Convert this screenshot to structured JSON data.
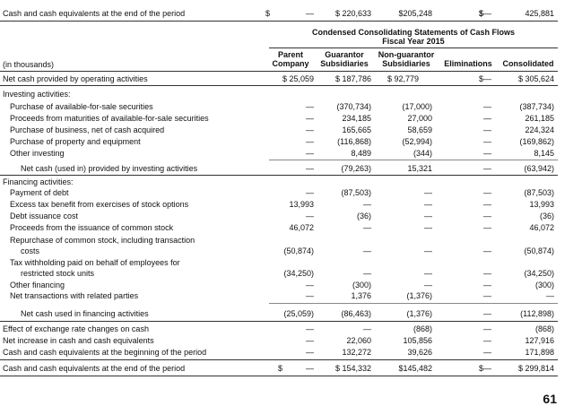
{
  "top_row": {
    "label": "Cash and cash equivalents at the end of the period",
    "parent_cur": "$",
    "parent": "—",
    "guarantor": "$ 220,633",
    "nonguarantor": "$205,248",
    "eliminations": "$—",
    "consolidated_cur": "$",
    "consolidated": "425,881"
  },
  "title_line1": "Condensed Consolidating Statements of Cash Flows",
  "title_line2": "Fiscal Year 2015",
  "col_heads": {
    "thousands": "(in thousands)",
    "parent_a": "Parent",
    "parent_b": "Company",
    "guarantor_a": "Guarantor",
    "guarantor_b": "Subsidiaries",
    "non_a": "Non-guarantor",
    "non_b": "Subsidiaries",
    "elim": "Eliminations",
    "cons": "Consolidated"
  },
  "operating": {
    "label": "Net cash provided by operating activities",
    "parent": "$ 25,059",
    "guarantor": "$ 187,786",
    "nonguarantor": "$  92,779",
    "eliminations": "$—",
    "consolidated": "$ 305,624"
  },
  "investing_head": "Investing activities:",
  "investing": [
    {
      "label": "Purchase of available-for-sale securities",
      "parent": "—",
      "guarantor": "(370,734)",
      "nonguarantor": "(17,000)",
      "eliminations": "—",
      "consolidated": "(387,734)"
    },
    {
      "label": "Proceeds from maturities of available-for-sale securities",
      "parent": "—",
      "guarantor": "234,185",
      "nonguarantor": "27,000",
      "eliminations": "—",
      "consolidated": "261,185"
    },
    {
      "label": "Purchase of business, net of cash acquired",
      "parent": "—",
      "guarantor": "165,665",
      "nonguarantor": "58,659",
      "eliminations": "—",
      "consolidated": "224,324"
    },
    {
      "label": "Purchase of property and equipment",
      "parent": "—",
      "guarantor": "(116,868)",
      "nonguarantor": "(52,994)",
      "eliminations": "—",
      "consolidated": "(169,862)"
    },
    {
      "label": "Other investing",
      "parent": "—",
      "guarantor": "8,489",
      "nonguarantor": "(344)",
      "eliminations": "—",
      "consolidated": "8,145"
    }
  ],
  "investing_total": {
    "label": "Net cash (used in) provided by investing activities",
    "parent": "—",
    "guarantor": "(79,263)",
    "nonguarantor": "15,321",
    "eliminations": "—",
    "consolidated": "(63,942)"
  },
  "financing_head": "Financing activities:",
  "financing": [
    {
      "label": "Payment of debt",
      "parent": "—",
      "guarantor": "(87,503)",
      "nonguarantor": "—",
      "eliminations": "—",
      "consolidated": "(87,503)"
    },
    {
      "label": "Excess tax benefit from exercises of stock options",
      "parent": "13,993",
      "guarantor": "—",
      "nonguarantor": "—",
      "eliminations": "—",
      "consolidated": "13,993"
    },
    {
      "label": "Debt issuance cost",
      "parent": "—",
      "guarantor": "(36)",
      "nonguarantor": "—",
      "eliminations": "—",
      "consolidated": "(36)"
    },
    {
      "label": "Proceeds from the issuance of common stock",
      "parent": "46,072",
      "guarantor": "—",
      "nonguarantor": "—",
      "eliminations": "—",
      "consolidated": "46,072"
    }
  ],
  "repurchase": {
    "label_a": "Repurchase of common stock, including transaction",
    "label_b": "costs",
    "parent": "(50,874)",
    "guarantor": "—",
    "nonguarantor": "—",
    "eliminations": "—",
    "consolidated": "(50,874)"
  },
  "withholding": {
    "label_a": "Tax withholding paid on behalf of employees for",
    "label_b": "restricted stock units",
    "parent": "(34,250)",
    "guarantor": "—",
    "nonguarantor": "—",
    "eliminations": "—",
    "consolidated": "(34,250)"
  },
  "other_financing": {
    "label": "Other financing",
    "parent": "—",
    "guarantor": "(300)",
    "nonguarantor": "—",
    "eliminations": "—",
    "consolidated": "(300)"
  },
  "related": {
    "label": "Net transactions with related parties",
    "parent": "—",
    "guarantor": "1,376",
    "nonguarantor": "(1,376)",
    "eliminations": "—",
    "consolidated": "—"
  },
  "financing_total": {
    "label": "Net cash used in financing activities",
    "parent": "(25,059)",
    "guarantor": "(86,463)",
    "nonguarantor": "(1,376)",
    "eliminations": "—",
    "consolidated": "(112,898)"
  },
  "effects": [
    {
      "label": "Effect of exchange rate changes on cash",
      "parent": "—",
      "guarantor": "—",
      "nonguarantor": "(868)",
      "eliminations": "—",
      "consolidated": "(868)"
    },
    {
      "label": "Net increase in cash and cash equivalents",
      "parent": "—",
      "guarantor": "22,060",
      "nonguarantor": "105,856",
      "eliminations": "—",
      "consolidated": "127,916"
    },
    {
      "label": "Cash and cash equivalents at the beginning of the period",
      "parent": "—",
      "guarantor": "132,272",
      "nonguarantor": "39,626",
      "eliminations": "—",
      "consolidated": "171,898"
    }
  ],
  "end_row": {
    "label": "Cash and cash equivalents at the end of the period",
    "parent_cur": "$",
    "parent": "—",
    "guarantor": "$ 154,332",
    "nonguarantor": "$145,482",
    "eliminations": "$—",
    "consolidated": "$ 299,814"
  },
  "page_number": "61"
}
